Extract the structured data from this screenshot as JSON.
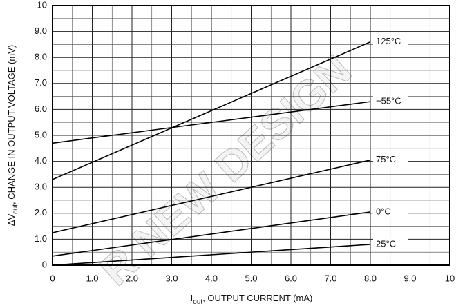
{
  "chart_data": {
    "type": "line",
    "xlabel": [
      "I",
      "out",
      ", OUTPUT CURRENT (mA)"
    ],
    "ylabel": [
      "ΔV",
      "out",
      ", CHANGE IN OUTPUT VOLTAGE (mV)"
    ],
    "watermark": "R NEW DESIGN",
    "x": [
      0,
      8
    ],
    "series": [
      {
        "name": "125°C",
        "color": "#000000",
        "values": [
          3.3,
          8.6
        ]
      },
      {
        "name": "−55°C",
        "color": "#000000",
        "values": [
          4.7,
          6.3
        ]
      },
      {
        "name": "75°C",
        "color": "#000000",
        "values": [
          1.25,
          4.05
        ]
      },
      {
        "name": "0°C",
        "color": "#000000",
        "values": [
          0.35,
          2.05
        ]
      },
      {
        "name": "25°C",
        "color": "#000000",
        "values": [
          0,
          0.8
        ]
      }
    ],
    "xlim": [
      0,
      10
    ],
    "xticks": [
      0,
      {
        "value": 1,
        "label": "1.0"
      },
      {
        "value": 2,
        "label": "2.0"
      },
      {
        "value": 3,
        "label": "3.0"
      },
      {
        "value": 4,
        "label": "4.0"
      },
      {
        "value": 5,
        "label": "5.0"
      },
      {
        "value": 6,
        "label": "6.0"
      },
      {
        "value": 7,
        "label": "7.0"
      },
      {
        "value": 8,
        "label": "8.0"
      },
      {
        "value": 9,
        "label": "9.0"
      },
      10
    ],
    "ylim": [
      0,
      10
    ],
    "yticks": [
      0,
      {
        "value": 1,
        "label": "1.0"
      },
      {
        "value": 2,
        "label": "2.0"
      },
      {
        "value": 3,
        "label": "3.0"
      },
      {
        "value": 4,
        "label": "4.0"
      },
      {
        "value": 5,
        "label": "5.0"
      },
      {
        "value": 6,
        "label": "6.0"
      },
      {
        "value": 7,
        "label": "7.0"
      },
      {
        "value": 8,
        "label": "8.0"
      },
      {
        "value": 9,
        "label": "9.0"
      },
      10
    ],
    "grid": true
  }
}
